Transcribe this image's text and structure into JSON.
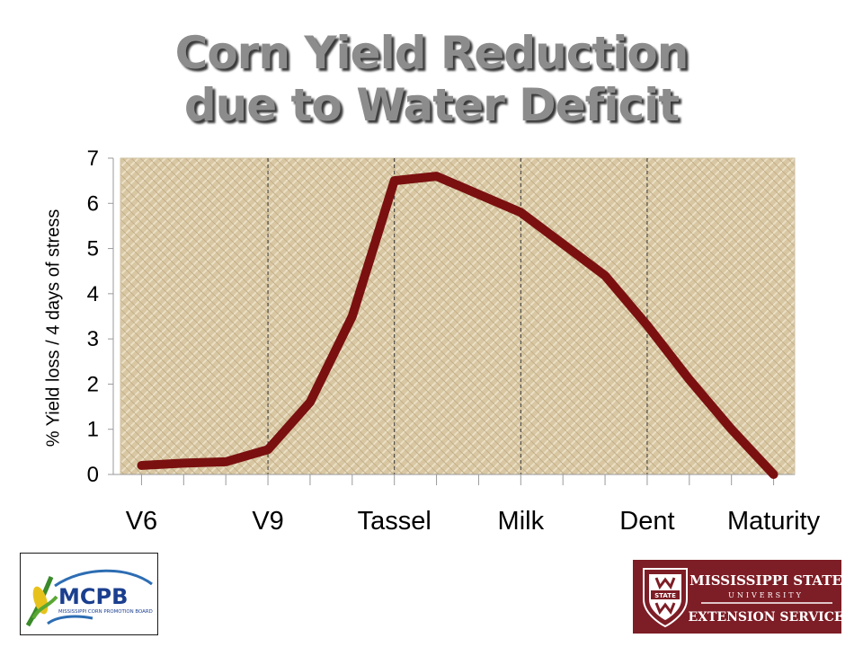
{
  "title_lines": [
    "Corn Yield Reduction",
    "due to Water Deficit"
  ],
  "chart_data": {
    "type": "line",
    "title": "Corn Yield Reduction due to Water Deficit",
    "ylabel": "% Yield loss / 4 days of stress",
    "xlabel": "",
    "categories": [
      "V6",
      "V9",
      "Tassel",
      "Milk",
      "Dent",
      "Maturity"
    ],
    "category_positions": [
      0,
      3,
      6,
      9,
      12,
      15
    ],
    "xlim": [
      -0.5,
      15.5
    ],
    "ylim": [
      0,
      7
    ],
    "yticks": [
      0,
      1,
      2,
      3,
      4,
      5,
      6,
      7
    ],
    "grid": "dashed vertical lines at V9, Tassel, Milk, Dent",
    "legend": "none",
    "series": [
      {
        "color": "#7b1010",
        "x": [
          0,
          1,
          2,
          3,
          4,
          5,
          6,
          7,
          8,
          9,
          10,
          11,
          12,
          13,
          14,
          15
        ],
        "values": [
          0.2,
          0.25,
          0.28,
          0.55,
          1.6,
          3.5,
          6.5,
          6.6,
          6.2,
          5.8,
          5.1,
          4.4,
          3.3,
          2.1,
          1.0,
          0.0
        ]
      }
    ]
  },
  "logos": {
    "mcpb": {
      "text": "MCPB",
      "subtitle": "MISSISSIPPI CORN PROMOTION BOARD",
      "icon": "corn-icon"
    },
    "msu": {
      "line1": "MISSISSIPPI STATE",
      "line2": "UNIVERSITY",
      "line3": "EXTENSION SERVICE",
      "icon": "msu-shield-icon",
      "colors": {
        "background": "#7d1d25",
        "text": "#ffffff"
      }
    }
  },
  "colors": {
    "plot_background": "#d9c9a4",
    "line": "#7b1010",
    "title": "#8c8c8c"
  }
}
